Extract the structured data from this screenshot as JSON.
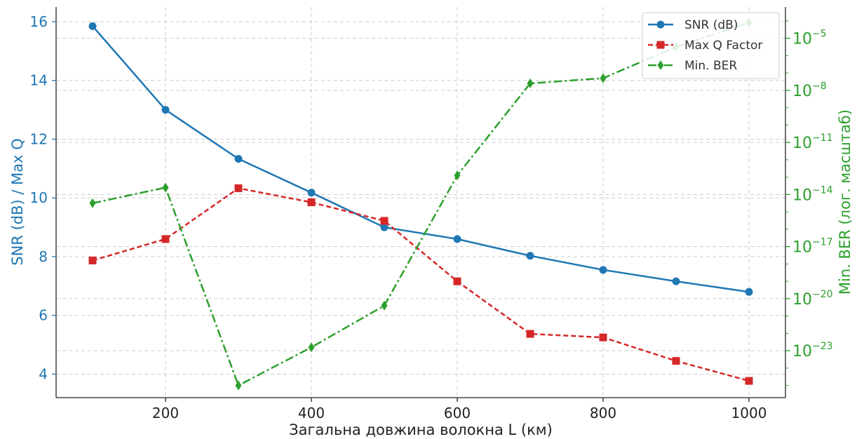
{
  "chart_data": {
    "type": "line",
    "xlabel": "Загальна довжина волокна L (км)",
    "ylabel_left": "SNR (dB) / Max Q",
    "ylabel_right": "Min. BER (лог. масштаб)",
    "x": [
      100,
      200,
      300,
      400,
      500,
      600,
      700,
      800,
      900,
      1000
    ],
    "xlim": [
      50,
      1050
    ],
    "x_ticks": [
      200,
      400,
      600,
      800,
      1000
    ],
    "ylim_left": [
      3.2,
      16.5
    ],
    "y_ticks_left": [
      4,
      6,
      8,
      10,
      12,
      14,
      16
    ],
    "right_scale": "log",
    "ylim_right_exp": [
      -25.7,
      -3.2
    ],
    "y_ticks_right_exp": [
      -23,
      -20,
      -17,
      -14,
      -11,
      -8,
      -5
    ],
    "grid": true,
    "legend_position": "top-right",
    "series": [
      {
        "name": "SNR (dB)",
        "axis": "left",
        "color": "#1f77b4",
        "line_style": "solid",
        "marker": "circle",
        "values": [
          15.85,
          13.0,
          11.33,
          10.18,
          9.0,
          8.6,
          8.03,
          7.55,
          7.16,
          6.8
        ]
      },
      {
        "name": "Max Q Factor",
        "axis": "left",
        "color": "#d62728",
        "line_style": "dashed",
        "marker": "square",
        "values": [
          7.87,
          8.6,
          10.33,
          9.85,
          9.22,
          7.16,
          5.37,
          5.25,
          4.45,
          3.77
        ]
      },
      {
        "name": "Min. BER",
        "axis": "right",
        "color": "#2ca02c",
        "line_style": "dashdot",
        "marker": "diamond",
        "values_log10": [
          -14.5,
          -13.6,
          -25.0,
          -22.8,
          -20.4,
          -12.9,
          -7.6,
          -7.3,
          -5.5,
          -4.1
        ]
      }
    ]
  }
}
